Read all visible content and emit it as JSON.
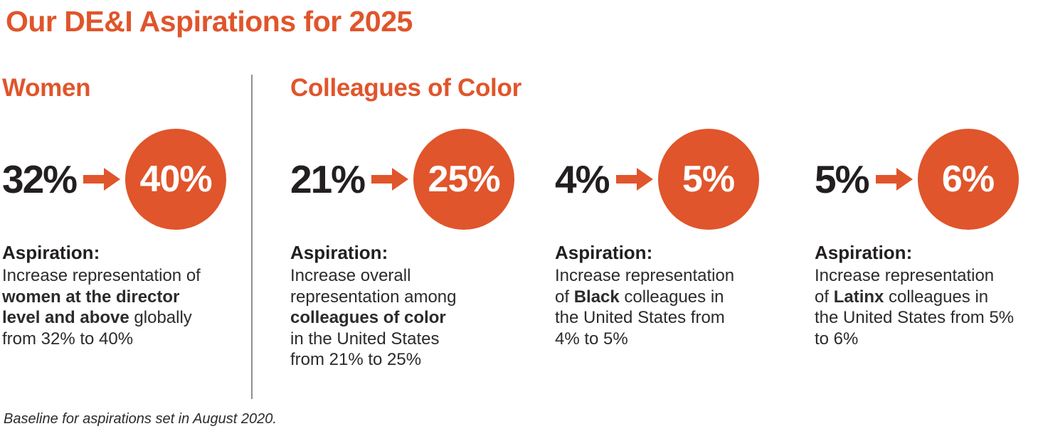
{
  "title": "Our DE&I Aspirations for 2025",
  "footnote": "Baseline for aspirations set in August 2020.",
  "colors": {
    "accent_orange": "#e0552b",
    "text_dark": "#231f20",
    "divider_gray": "#909090",
    "circle_text": "#ffffff"
  },
  "sections": [
    {
      "heading": "Women",
      "stats": [
        {
          "baseline_value": "32%",
          "target_value": "40%",
          "aspiration_label": "Aspiration:",
          "description": [
            {
              "text": "Increase representation of\n",
              "bold": false
            },
            {
              "text": "women at the director\nlevel and above",
              "bold": true
            },
            {
              "text": " globally\nfrom 32% to 40%",
              "bold": false
            }
          ]
        }
      ]
    },
    {
      "heading": "Colleagues of Color",
      "stats": [
        {
          "baseline_value": "21%",
          "target_value": "25%",
          "aspiration_label": "Aspiration:",
          "description": [
            {
              "text": "Increase overall\nrepresentation among\n",
              "bold": false
            },
            {
              "text": "colleagues of color",
              "bold": true
            },
            {
              "text": "\nin the United States\nfrom 21% to 25%",
              "bold": false
            }
          ]
        },
        {
          "baseline_value": "4%",
          "target_value": "5%",
          "aspiration_label": "Aspiration:",
          "description": [
            {
              "text": "Increase representation\nof ",
              "bold": false
            },
            {
              "text": "Black",
              "bold": true
            },
            {
              "text": " colleagues in\nthe United States from\n4% to 5%",
              "bold": false
            }
          ]
        },
        {
          "baseline_value": "5%",
          "target_value": "6%",
          "aspiration_label": "Aspiration:",
          "description": [
            {
              "text": "Increase representation\nof ",
              "bold": false
            },
            {
              "text": "Latinx",
              "bold": true
            },
            {
              "text": " colleagues in\nthe United States from 5%\nto 6%",
              "bold": false
            }
          ]
        }
      ]
    }
  ]
}
